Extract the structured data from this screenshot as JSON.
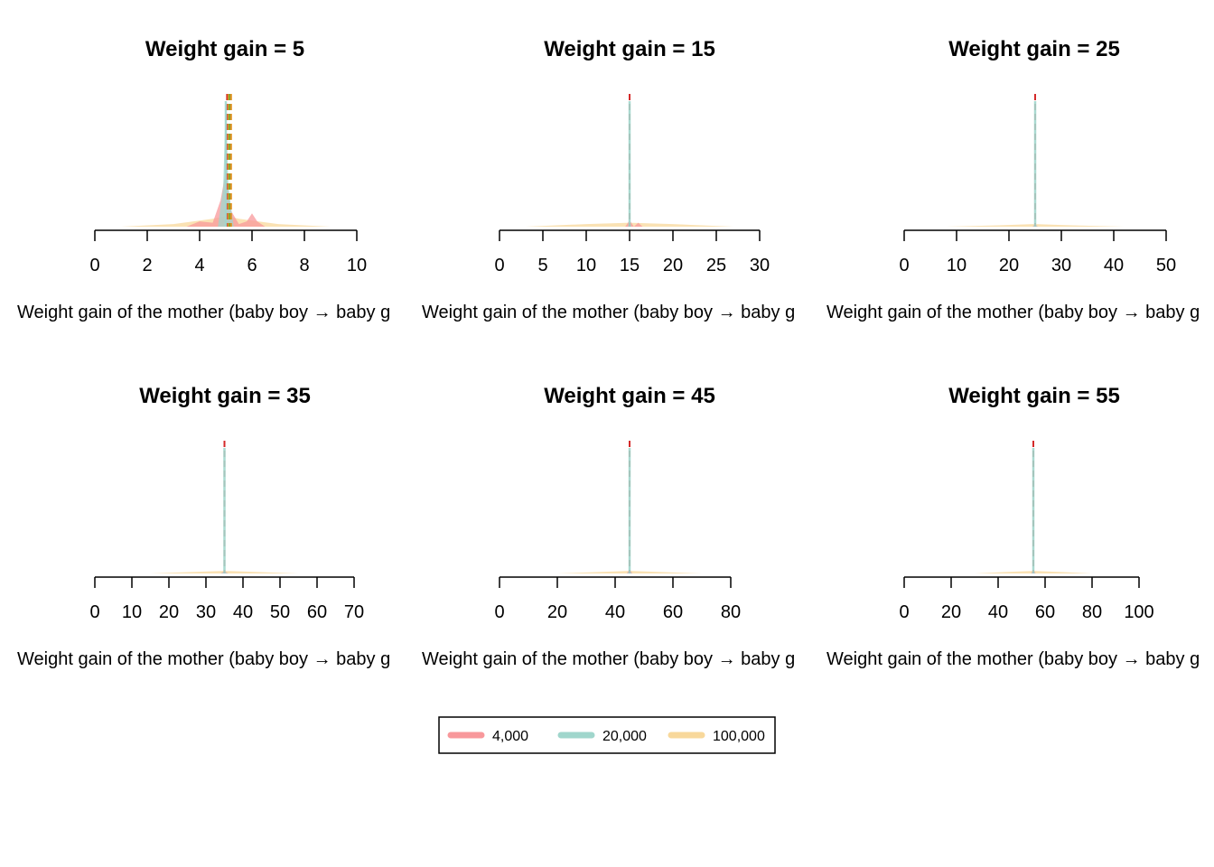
{
  "colors": {
    "series_4000": "#F8989B",
    "series_20000": "#A0D6CC",
    "series_100000": "#F8D89B",
    "dashed_red": "#D42A2A",
    "dashed_orange": "#E09020",
    "dashed_green": "#6AAA3A",
    "axis": "#000000"
  },
  "chart_data": [
    {
      "type": "area",
      "title": "Weight gain = 5",
      "xlabel": "Weight gain of the mother (baby boy → baby g",
      "xlim": [
        0,
        10
      ],
      "xticks": [
        "0",
        "2",
        "4",
        "6",
        "8",
        "10"
      ],
      "true_value": 5,
      "estimates": [
        5.05,
        5.1,
        5.15,
        5.2
      ],
      "series": [
        {
          "name": "4,000",
          "x": [
            3.5,
            4.0,
            4.5,
            4.8,
            5.0,
            5.2,
            5.5,
            5.8,
            6.0,
            6.2,
            6.5
          ],
          "y": [
            0.0,
            0.04,
            0.03,
            0.2,
            0.42,
            0.12,
            0.02,
            0.04,
            0.1,
            0.04,
            0.0
          ]
        },
        {
          "name": "20,000",
          "x": [
            4.7,
            4.9,
            5.0,
            5.1,
            5.3
          ],
          "y": [
            0.0,
            0.3,
            0.95,
            0.3,
            0.0
          ]
        },
        {
          "name": "100,000",
          "x": [
            1.0,
            3.0,
            4.5,
            5.0,
            5.5,
            7.0,
            9.0
          ],
          "y": [
            0.0,
            0.02,
            0.06,
            0.08,
            0.06,
            0.02,
            0.0
          ]
        }
      ]
    },
    {
      "type": "area",
      "title": "Weight gain = 15",
      "xlabel": "Weight gain of the mother (baby boy → baby g",
      "xlim": [
        0,
        30
      ],
      "xticks": [
        "0",
        "5",
        "10",
        "15",
        "20",
        "25",
        "30"
      ],
      "true_value": 15,
      "estimates": [
        15.0
      ],
      "series": [
        {
          "name": "4,000",
          "x": [
            14.5,
            15.0,
            15.5,
            16.0,
            16.5
          ],
          "y": [
            0.0,
            0.05,
            0.0,
            0.03,
            0.0
          ]
        },
        {
          "name": "20,000",
          "x": [
            14.8,
            15.0,
            15.2
          ],
          "y": [
            0.0,
            0.02,
            0.0
          ]
        },
        {
          "name": "100,000",
          "x": [
            3.0,
            10.0,
            15.0,
            20.0,
            27.0
          ],
          "y": [
            0.0,
            0.02,
            0.03,
            0.02,
            0.0
          ]
        }
      ]
    },
    {
      "type": "area",
      "title": "Weight gain = 25",
      "xlabel": "Weight gain of the mother (baby boy → baby g",
      "xlim": [
        0,
        50
      ],
      "xticks": [
        "0",
        "10",
        "20",
        "30",
        "40",
        "50"
      ],
      "true_value": 25,
      "estimates": [
        25.0
      ],
      "series": [
        {
          "name": "4,000",
          "x": [
            24.5,
            25.0,
            25.5
          ],
          "y": [
            0.0,
            0.02,
            0.0
          ]
        },
        {
          "name": "20,000",
          "x": [
            24.5,
            25.0,
            25.5
          ],
          "y": [
            0.0,
            0.01,
            0.0
          ]
        },
        {
          "name": "100,000",
          "x": [
            8.0,
            18.0,
            25.0,
            32.0,
            42.0
          ],
          "y": [
            0.0,
            0.01,
            0.02,
            0.01,
            0.0
          ]
        }
      ]
    },
    {
      "type": "area",
      "title": "Weight gain = 35",
      "xlabel": "Weight gain of the mother (baby boy → baby g",
      "xlim": [
        0,
        70
      ],
      "xticks": [
        "0",
        "10",
        "20",
        "30",
        "40",
        "50",
        "60",
        "70"
      ],
      "true_value": 35,
      "estimates": [
        35.0
      ],
      "series": [
        {
          "name": "4,000",
          "x": [
            34.0,
            35.0,
            36.0
          ],
          "y": [
            0.0,
            0.02,
            0.0
          ]
        },
        {
          "name": "20,000",
          "x": [
            34.0,
            35.0,
            36.0
          ],
          "y": [
            0.0,
            0.01,
            0.0
          ]
        },
        {
          "name": "100,000",
          "x": [
            15.0,
            25.0,
            35.0,
            45.0,
            55.0
          ],
          "y": [
            0.0,
            0.01,
            0.02,
            0.01,
            0.0
          ]
        }
      ]
    },
    {
      "type": "area",
      "title": "Weight gain = 45",
      "xlabel": "Weight gain of the mother (baby boy → baby g",
      "xlim": [
        0,
        80
      ],
      "xticks": [
        "0",
        "20",
        "40",
        "60",
        "80"
      ],
      "true_value": 45,
      "estimates": [
        45.0
      ],
      "series": [
        {
          "name": "4,000",
          "x": [
            44.0,
            45.0,
            46.0
          ],
          "y": [
            0.0,
            0.03,
            0.0
          ]
        },
        {
          "name": "20,000",
          "x": [
            44.0,
            45.0,
            46.0
          ],
          "y": [
            0.0,
            0.01,
            0.0
          ]
        },
        {
          "name": "100,000",
          "x": [
            20.0,
            33.0,
            45.0,
            57.0,
            70.0
          ],
          "y": [
            0.0,
            0.01,
            0.02,
            0.01,
            0.0
          ]
        }
      ]
    },
    {
      "type": "area",
      "title": "Weight gain = 55",
      "xlabel": "Weight gain of the mother (baby boy → baby g",
      "xlim": [
        0,
        100
      ],
      "xticks": [
        "0",
        "20",
        "40",
        "60",
        "80",
        "100"
      ],
      "true_value": 55,
      "estimates": [
        55.0
      ],
      "series": [
        {
          "name": "4,000",
          "x": [
            54.0,
            55.0,
            56.0
          ],
          "y": [
            0.0,
            0.03,
            0.0
          ]
        },
        {
          "name": "20,000",
          "x": [
            54.0,
            55.0,
            56.0
          ],
          "y": [
            0.0,
            0.01,
            0.0
          ]
        },
        {
          "name": "100,000",
          "x": [
            30.0,
            42.0,
            55.0,
            68.0,
            80.0
          ],
          "y": [
            0.0,
            0.01,
            0.02,
            0.01,
            0.0
          ]
        }
      ]
    }
  ],
  "legend": {
    "items": [
      {
        "label": "4,000",
        "color": "#F8989B"
      },
      {
        "label": "20,000",
        "color": "#A0D6CC"
      },
      {
        "label": "100,000",
        "color": "#F8D89B"
      }
    ]
  }
}
